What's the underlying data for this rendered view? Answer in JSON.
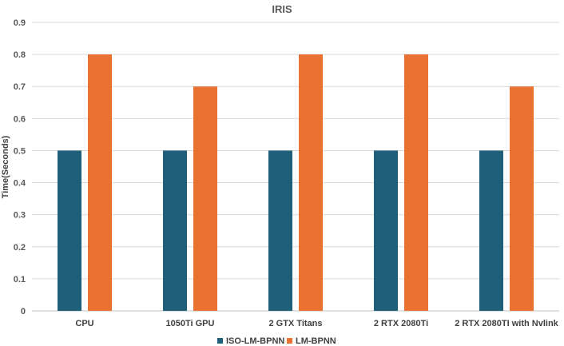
{
  "chart_data": {
    "type": "bar",
    "title": "IRIS",
    "xlabel": "",
    "ylabel": "Time(Seconds)",
    "ylim": [
      0,
      0.9
    ],
    "yticks": [
      0,
      0.1,
      0.2,
      0.3,
      0.4,
      0.5,
      0.6,
      0.7,
      0.8,
      0.9
    ],
    "ytick_labels": [
      "0",
      "0.1",
      "0.2",
      "0.3",
      "0.4",
      "0.5",
      "0.6",
      "0.7",
      "0.8",
      "0.9"
    ],
    "grid": true,
    "legend_position": "bottom",
    "categories": [
      "CPU",
      "1050Ti GPU",
      "2 GTX Titans",
      "2 RTX 2080Ti",
      "2 RTX 2080TI with Nvlink"
    ],
    "series": [
      {
        "name": "ISO-LM-BPNN",
        "color": "#1f5f7a",
        "values": [
          0.5,
          0.5,
          0.5,
          0.5,
          0.5
        ]
      },
      {
        "name": "LM-BPNN",
        "color": "#e97132",
        "values": [
          0.8,
          0.7,
          0.8,
          0.8,
          0.7
        ]
      }
    ]
  }
}
